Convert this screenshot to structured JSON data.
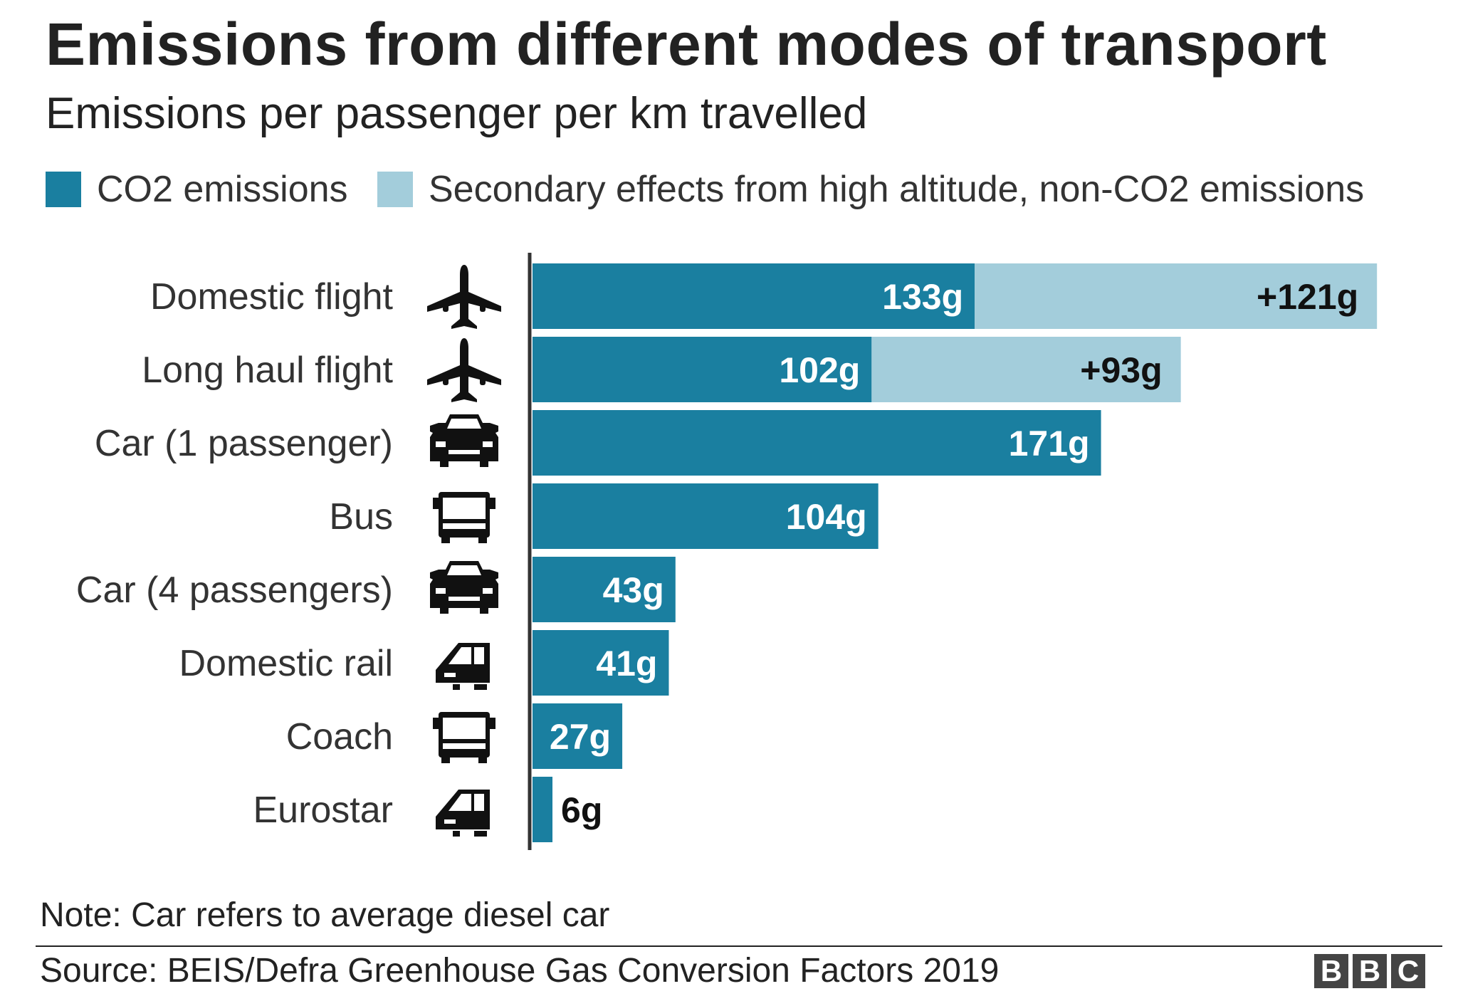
{
  "title": "Emissions from different modes of transport",
  "subtitle": "Emissions per passenger per km travelled",
  "legend": [
    {
      "label": "CO2 emissions",
      "color": "#1a7fa0"
    },
    {
      "label": "Secondary effects from high altitude, non-CO2 emissions",
      "color": "#a3cddb"
    }
  ],
  "note": "Note: Car refers to average diesel car",
  "source": "Source: BEIS/Defra Greenhouse Gas Conversion Factors 2019",
  "logo": {
    "letters": [
      "B",
      "B",
      "C"
    ]
  },
  "chart_data": {
    "type": "bar",
    "orientation": "horizontal",
    "stacked": true,
    "categories": [
      "Domestic flight",
      "Long haul flight",
      "Car (1 passenger)",
      "Bus",
      "Car (4 passengers)",
      "Domestic rail",
      "Coach",
      "Eurostar"
    ],
    "icons": [
      "plane-icon",
      "plane-icon",
      "car-icon",
      "bus-icon",
      "car-icon",
      "train-icon",
      "bus-icon",
      "train-icon"
    ],
    "series": [
      {
        "name": "CO2 emissions",
        "color": "#1a7fa0",
        "values": [
          133,
          102,
          171,
          104,
          43,
          41,
          27,
          6
        ],
        "labels": [
          "133g",
          "102g",
          "171g",
          "104g",
          "43g",
          "41g",
          "27g",
          "6g"
        ]
      },
      {
        "name": "Secondary effects from high altitude, non-CO2 emissions",
        "color": "#a3cddb",
        "values": [
          121,
          93,
          0,
          0,
          0,
          0,
          0,
          0
        ],
        "labels": [
          "+121g",
          "+93g",
          "",
          "",
          "",
          "",
          "",
          ""
        ]
      }
    ],
    "xlim": [
      0,
      255
    ],
    "grid": false,
    "legend_position": "top-left"
  }
}
